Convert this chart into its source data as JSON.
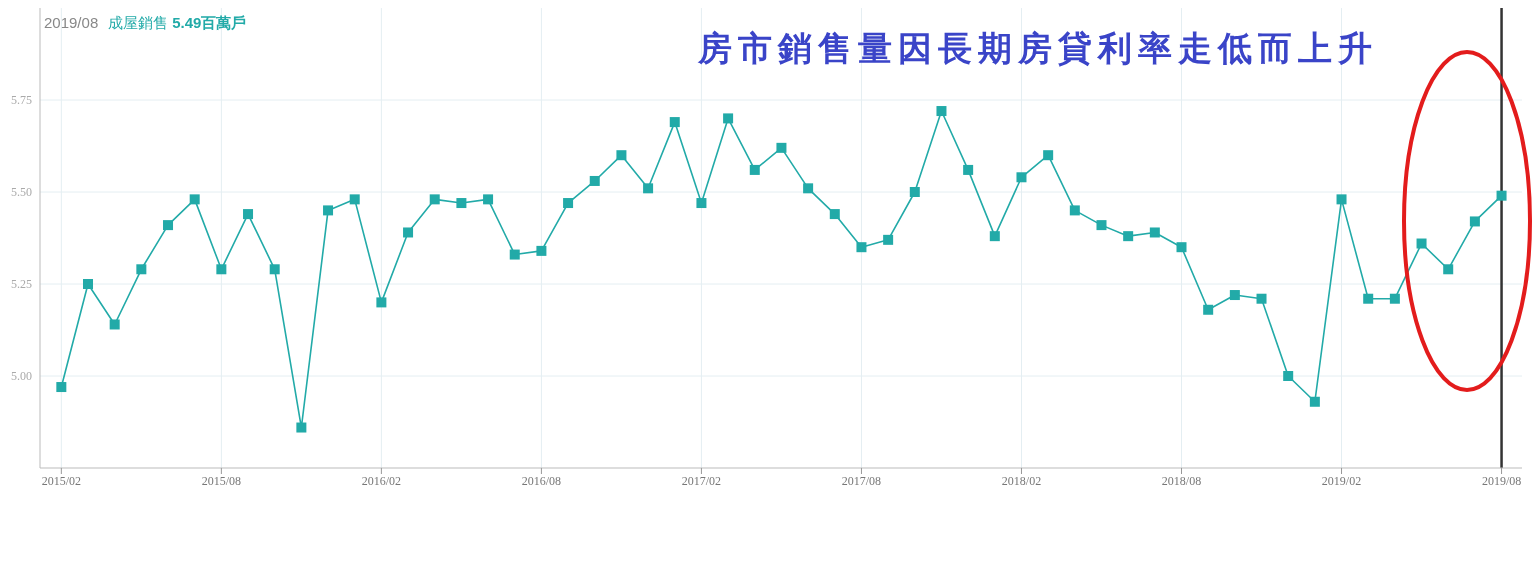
{
  "chart_data": {
    "type": "line",
    "title": "房市銷售量因長期房貸利率走低而上升",
    "annotations": [
      "2019/08",
      "5.49百萬戶"
    ],
    "x": [
      "2015-02",
      "2015-03",
      "2015-04",
      "2015-05",
      "2015-06",
      "2015-07",
      "2015-08",
      "2015-09",
      "2015-10",
      "2015-11",
      "2015-12",
      "2016-01",
      "2016-02",
      "2016-03",
      "2016-04",
      "2016-05",
      "2016-06",
      "2016-07",
      "2016-08",
      "2016-09",
      "2016-10",
      "2016-11",
      "2016-12",
      "2017-01",
      "2017-02",
      "2017-03",
      "2017-04",
      "2017-05",
      "2017-06",
      "2017-07",
      "2017-08",
      "2017-09",
      "2017-10",
      "2017-11",
      "2017-12",
      "2018-01",
      "2018-02",
      "2018-03",
      "2018-04",
      "2018-05",
      "2018-06",
      "2018-07",
      "2018-08",
      "2018-09",
      "2018-10",
      "2018-11",
      "2018-12",
      "2019-01",
      "2019-02",
      "2019-03",
      "2019-04",
      "2019-05",
      "2019-06",
      "2019-07",
      "2019-08"
    ],
    "series": [
      {
        "name": "成屋銷售",
        "color": "#22aaa8",
        "values": [
          4.97,
          5.25,
          5.14,
          5.29,
          5.41,
          5.48,
          5.29,
          5.44,
          5.29,
          4.86,
          5.45,
          5.48,
          5.2,
          5.39,
          5.48,
          5.47,
          5.48,
          5.33,
          5.34,
          5.47,
          5.53,
          5.6,
          5.51,
          5.69,
          5.47,
          5.7,
          5.56,
          5.62,
          5.51,
          5.44,
          5.35,
          5.37,
          5.5,
          5.72,
          5.56,
          5.38,
          5.54,
          5.6,
          5.45,
          5.41,
          5.38,
          5.39,
          5.35,
          5.18,
          5.22,
          5.21,
          5.0,
          4.93,
          5.48,
          5.21,
          5.21,
          5.36,
          5.29,
          5.42,
          5.49
        ]
      }
    ],
    "xlim": [
      "2015-01-07",
      "2019-08-24"
    ],
    "xticks": [
      {
        "value": "2015-02",
        "label": "2015/02"
      },
      {
        "value": "2015-08",
        "label": "2015/08"
      },
      {
        "value": "2016-02",
        "label": "2016/02"
      },
      {
        "value": "2016-08",
        "label": "2016/08"
      },
      {
        "value": "2017-02",
        "label": "2017/02"
      },
      {
        "value": "2017-08",
        "label": "2017/08"
      },
      {
        "value": "2018-02",
        "label": "2018/02"
      },
      {
        "value": "2018-08",
        "label": "2018/08"
      },
      {
        "value": "2019-02",
        "label": "2019/02"
      },
      {
        "value": "2019-08",
        "label": "2019/08"
      }
    ],
    "ylim": [
      4.75,
      6.0
    ],
    "yticks": [
      {
        "value": 5,
        "label": "5.00"
      },
      {
        "value": 5.25,
        "label": "5.25"
      },
      {
        "value": 5.5,
        "label": "5.50"
      },
      {
        "value": 5.75,
        "label": "5.75"
      }
    ],
    "ref_lines": [
      {
        "axis": "x",
        "value": "2019-08",
        "color": "#333333"
      }
    ],
    "grid": true,
    "legend": "top left",
    "marker": "square",
    "line_style": "solid"
  }
}
